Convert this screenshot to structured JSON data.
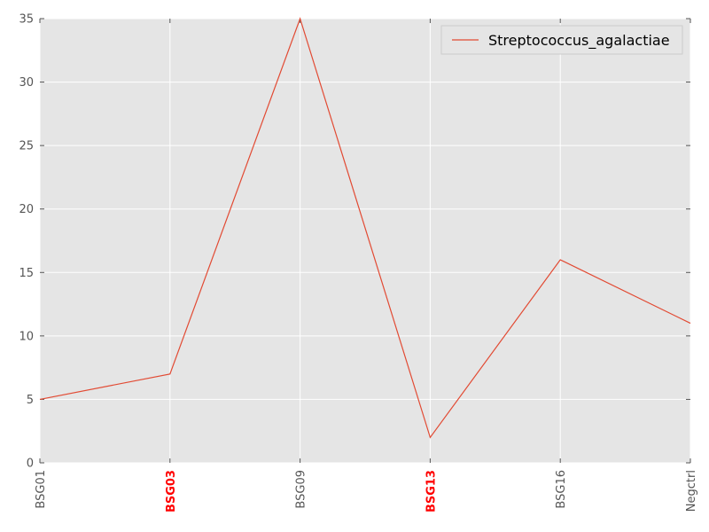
{
  "chart_data": {
    "type": "line",
    "categories": [
      "BSG01",
      "BSG03",
      "BSG09",
      "BSG13",
      "BSG16",
      "Negctrl"
    ],
    "highlighted_categories": [
      "BSG03",
      "BSG13"
    ],
    "highlight_color": "#ff0000",
    "series": [
      {
        "name": "Streptococcus_agalactiae",
        "values": [
          5,
          7,
          35,
          2,
          16,
          11
        ],
        "color": "#e24a33"
      }
    ],
    "yticks": [
      0,
      5,
      10,
      15,
      20,
      25,
      30,
      35
    ],
    "ylim": [
      0,
      35
    ],
    "grid": true,
    "legend": "top-right",
    "background_color": "#e5e5e5",
    "grid_color": "#ffffff"
  }
}
